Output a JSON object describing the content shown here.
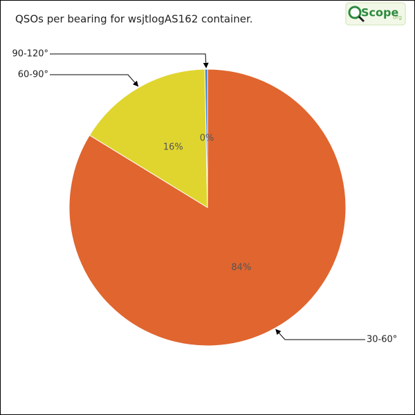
{
  "chart_data": {
    "type": "pie",
    "title": "QSOs per bearing for wsjtlogAS162 container.",
    "categories": [
      "30-60°",
      "60-90°",
      "90-120°"
    ],
    "values": [
      84,
      16,
      0.3
    ],
    "value_labels": [
      "84%",
      "16%",
      "0%"
    ],
    "colors": [
      "#e0652f",
      "#e0d52f",
      "#3c7fd4"
    ]
  },
  "logo": {
    "text": "Scope",
    "suffix": "org"
  }
}
